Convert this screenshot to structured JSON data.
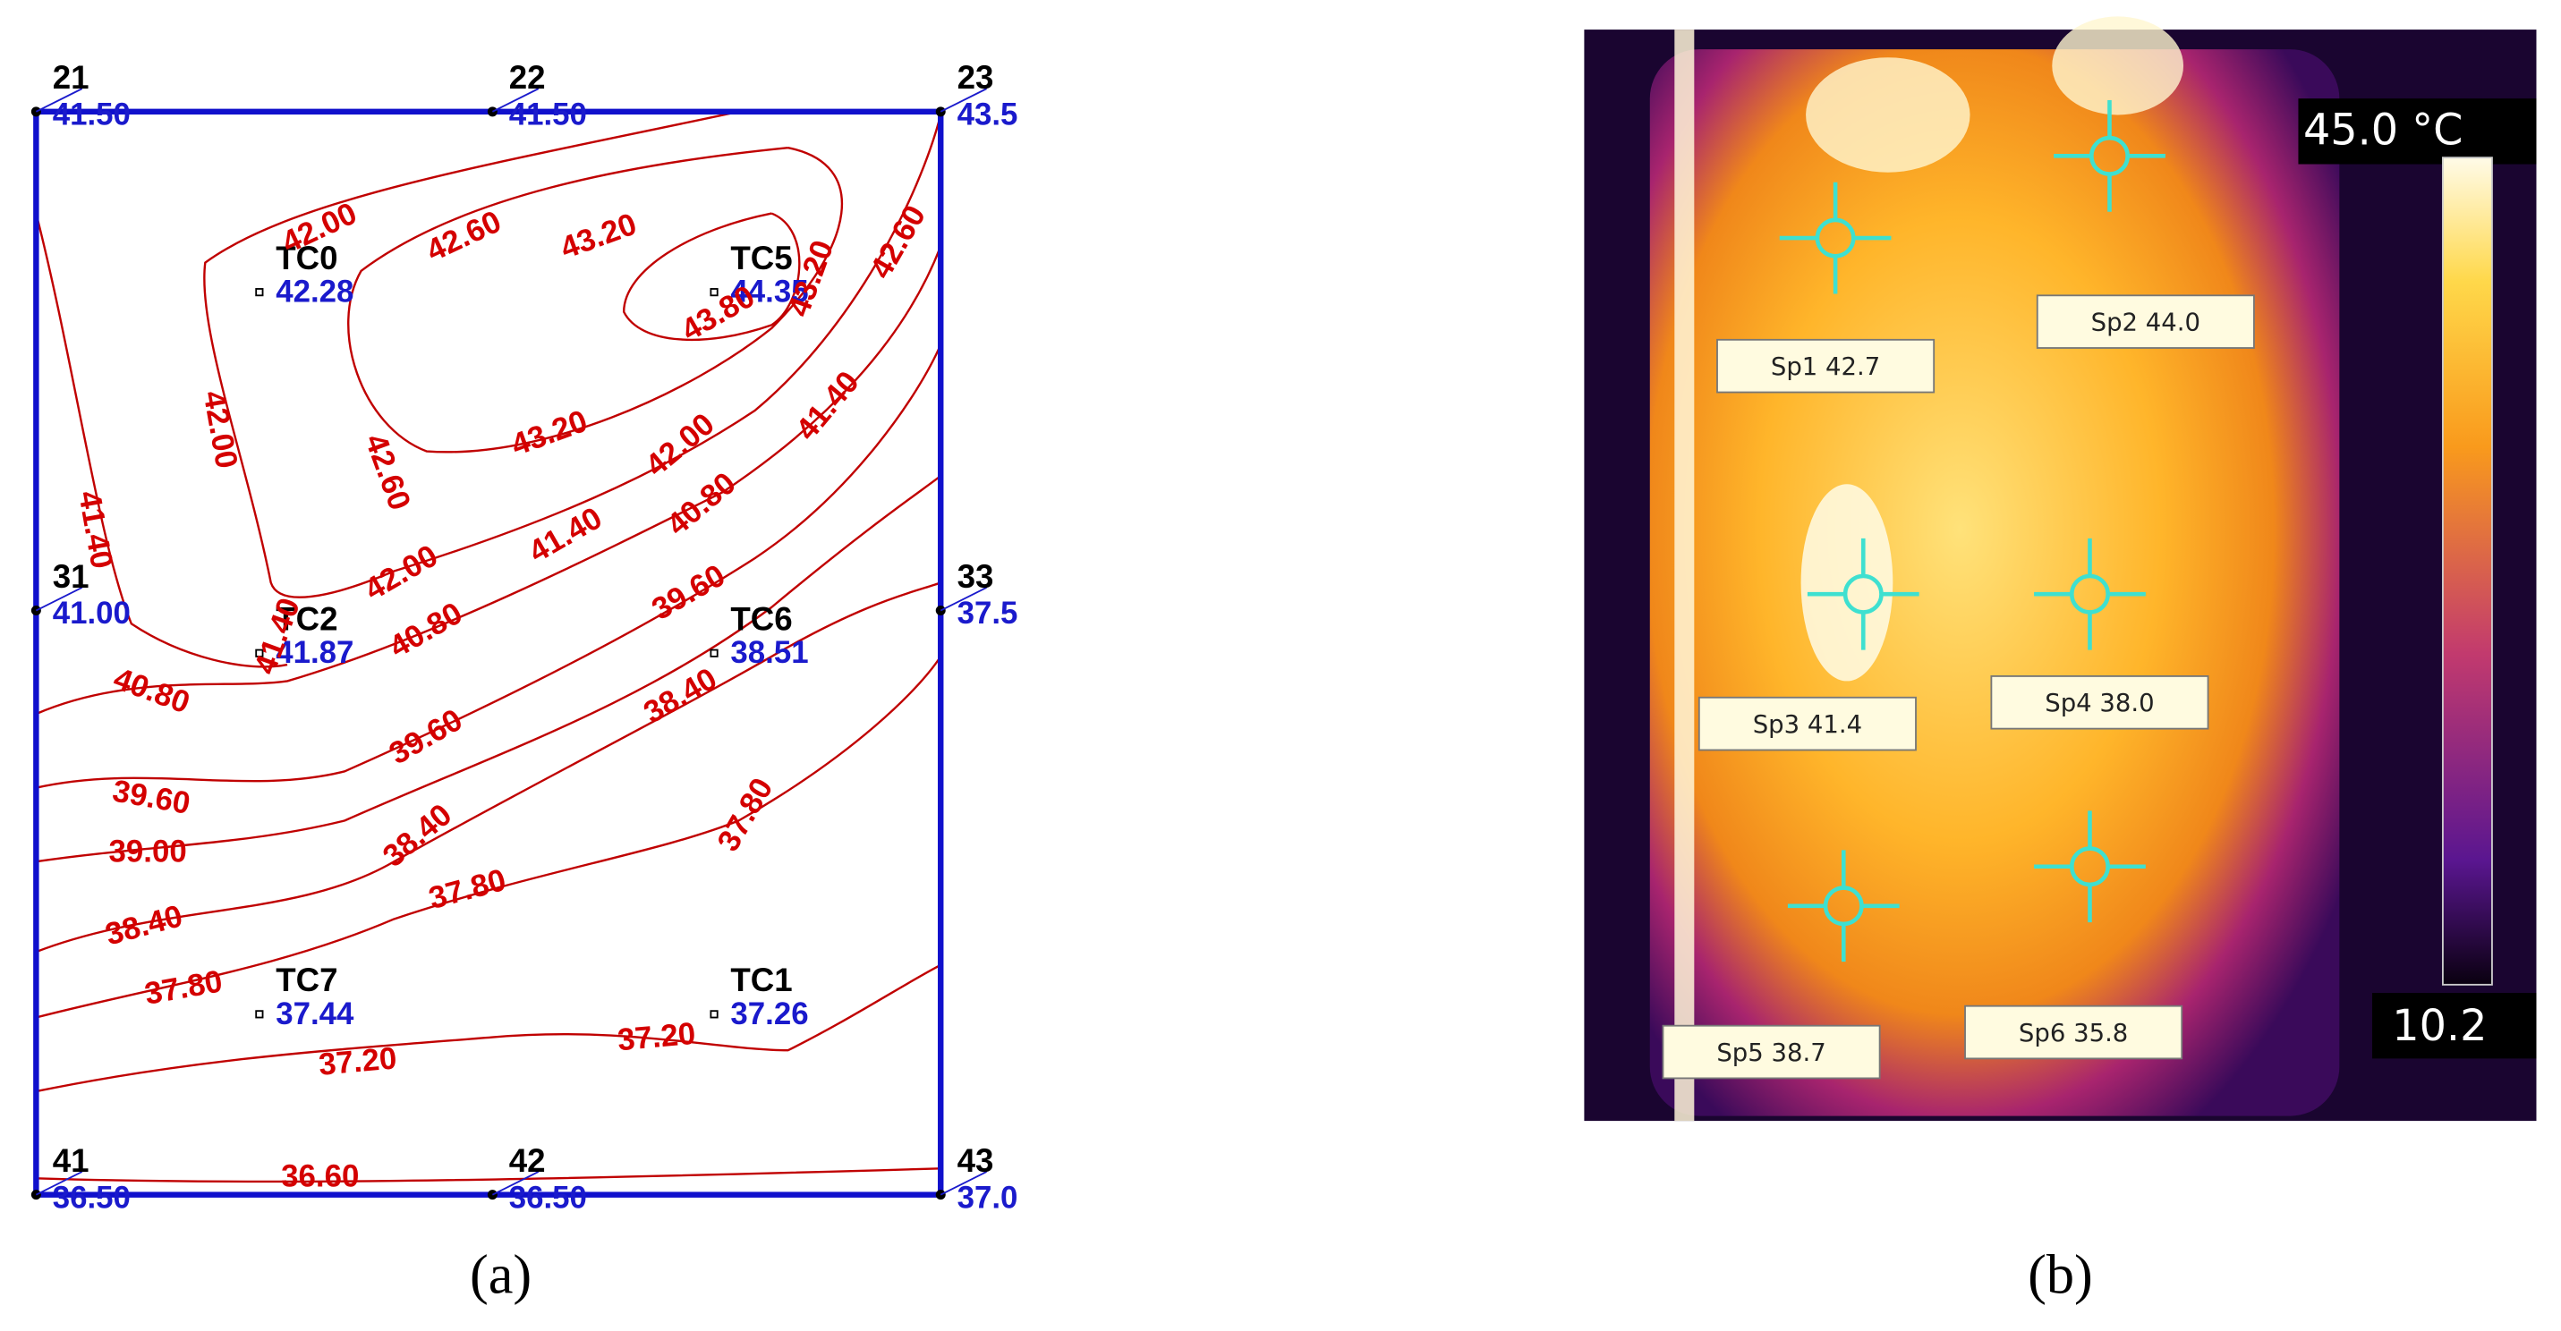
{
  "panel_a": {
    "caption": "(a)",
    "corners": [
      {
        "id": "21",
        "value": "41.50"
      },
      {
        "id": "22",
        "value": "41.50"
      },
      {
        "id": "23",
        "value": "43.5"
      },
      {
        "id": "31",
        "value": "41.00"
      },
      {
        "id": "33",
        "value": "37.5"
      },
      {
        "id": "41",
        "value": "36.50"
      },
      {
        "id": "42",
        "value": "36.50"
      },
      {
        "id": "43",
        "value": "37.0"
      }
    ],
    "sensors": [
      {
        "id": "TC0",
        "value": "42.28"
      },
      {
        "id": "TC5",
        "value": "44.35"
      },
      {
        "id": "TC2",
        "value": "41.87"
      },
      {
        "id": "TC6",
        "value": "38.51"
      },
      {
        "id": "TC7",
        "value": "37.44"
      },
      {
        "id": "TC1",
        "value": "37.26"
      }
    ],
    "contour_labels": [
      "42.00",
      "42.60",
      "43.20",
      "43.80",
      "43.20",
      "42.60",
      "42.00",
      "42.60",
      "43.20",
      "41.40",
      "42.00",
      "41.40",
      "40.80",
      "42.00",
      "41.40",
      "39.60",
      "40.80",
      "41.40",
      "40.80",
      "38.40",
      "39.60",
      "39.60",
      "37.80",
      "39.00",
      "38.40",
      "37.80",
      "38.40",
      "37.80",
      "37.20",
      "37.20",
      "36.60"
    ]
  },
  "panel_b": {
    "caption": "(b)",
    "scale_max": "45.0 °C",
    "scale_min": "10.2",
    "spots": [
      "Sp1 42.7",
      "Sp2 44.0",
      "Sp3 41.4",
      "Sp4 38.0",
      "Sp5 38.7",
      "Sp6 35.8"
    ]
  }
}
